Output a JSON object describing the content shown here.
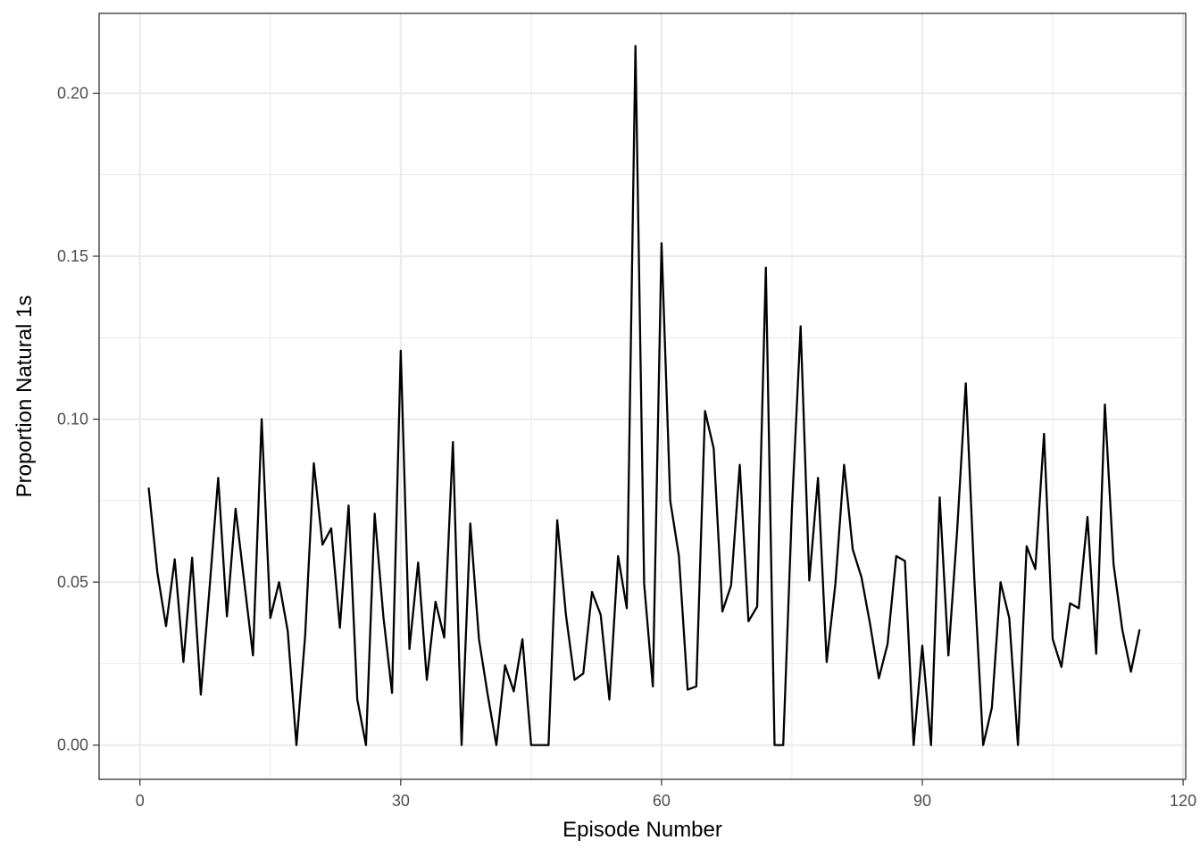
{
  "chart_data": {
    "type": "line",
    "title": "",
    "xlabel": "Episode Number",
    "ylabel": "Proportion Natural 1s",
    "xlim": [
      -4.7,
      120.3
    ],
    "ylim": [
      -0.0105,
      0.2245
    ],
    "x_ticks": [
      0,
      30,
      60,
      90,
      120
    ],
    "x_tick_labels": [
      "0",
      "30",
      "60",
      "90",
      "120"
    ],
    "y_ticks": [
      0.0,
      0.05,
      0.1,
      0.15,
      0.2
    ],
    "y_tick_labels": [
      "0.00",
      "0.05",
      "0.10",
      "0.15",
      "0.20"
    ],
    "grid": true,
    "legend": "none",
    "colors": {
      "line": "#000000",
      "grid": "#ebebeb",
      "panel_border": "#333333"
    },
    "series": [
      {
        "x": [
          1,
          2,
          3,
          4,
          5,
          6,
          7,
          8,
          9,
          10,
          11,
          12,
          13,
          14,
          15,
          16,
          17,
          18,
          19,
          20,
          21,
          22,
          23,
          24,
          25,
          26,
          27,
          28,
          29,
          30,
          31,
          32,
          33,
          34,
          35,
          36,
          37,
          38,
          39,
          40,
          41,
          42,
          43,
          44,
          45,
          46,
          47,
          48,
          49,
          50,
          51,
          52,
          53,
          54,
          55,
          56,
          57,
          58,
          59,
          60,
          61,
          62,
          63,
          64,
          65,
          66,
          67,
          68,
          69,
          70,
          71,
          72,
          73,
          74,
          75,
          76,
          77,
          78,
          79,
          80,
          81,
          82,
          83,
          84,
          85,
          86,
          87,
          88,
          89,
          90,
          91,
          92,
          93,
          94,
          95,
          96,
          97,
          98,
          99,
          100,
          101,
          102,
          103,
          104,
          105,
          106,
          107,
          108,
          109,
          110,
          111,
          112,
          113,
          114,
          115
        ],
        "values": [
          0.079,
          0.053,
          0.0365,
          0.057,
          0.0255,
          0.0575,
          0.0155,
          0.048,
          0.082,
          0.0395,
          0.0725,
          0.05,
          0.0275,
          0.1,
          0.039,
          0.05,
          0.035,
          0.0,
          0.0335,
          0.0865,
          0.0615,
          0.0665,
          0.036,
          0.0735,
          0.014,
          0.0,
          0.071,
          0.0395,
          0.016,
          0.121,
          0.0295,
          0.056,
          0.02,
          0.044,
          0.033,
          0.093,
          0.0,
          0.068,
          0.0325,
          0.0155,
          0.0,
          0.0245,
          0.0165,
          0.0325,
          0.0,
          0.0,
          0.0,
          0.069,
          0.04,
          0.02,
          0.022,
          0.047,
          0.04,
          0.014,
          0.058,
          0.042,
          0.2145,
          0.0495,
          0.018,
          0.154,
          0.075,
          0.058,
          0.017,
          0.018,
          0.1025,
          0.091,
          0.041,
          0.049,
          0.086,
          0.038,
          0.0425,
          0.1465,
          0.0,
          0.0,
          0.0725,
          0.1285,
          0.0505,
          0.082,
          0.0255,
          0.0495,
          0.086,
          0.06,
          0.0515,
          0.037,
          0.0205,
          0.031,
          0.058,
          0.0565,
          0.0,
          0.0305,
          0.0,
          0.076,
          0.0275,
          0.0655,
          0.111,
          0.05,
          0.0,
          0.0115,
          0.05,
          0.039,
          0.0,
          0.061,
          0.054,
          0.0955,
          0.0325,
          0.024,
          0.0435,
          0.042,
          0.07,
          0.028,
          0.1045,
          0.0555,
          0.0355,
          0.0225,
          0.0355
        ]
      }
    ]
  }
}
